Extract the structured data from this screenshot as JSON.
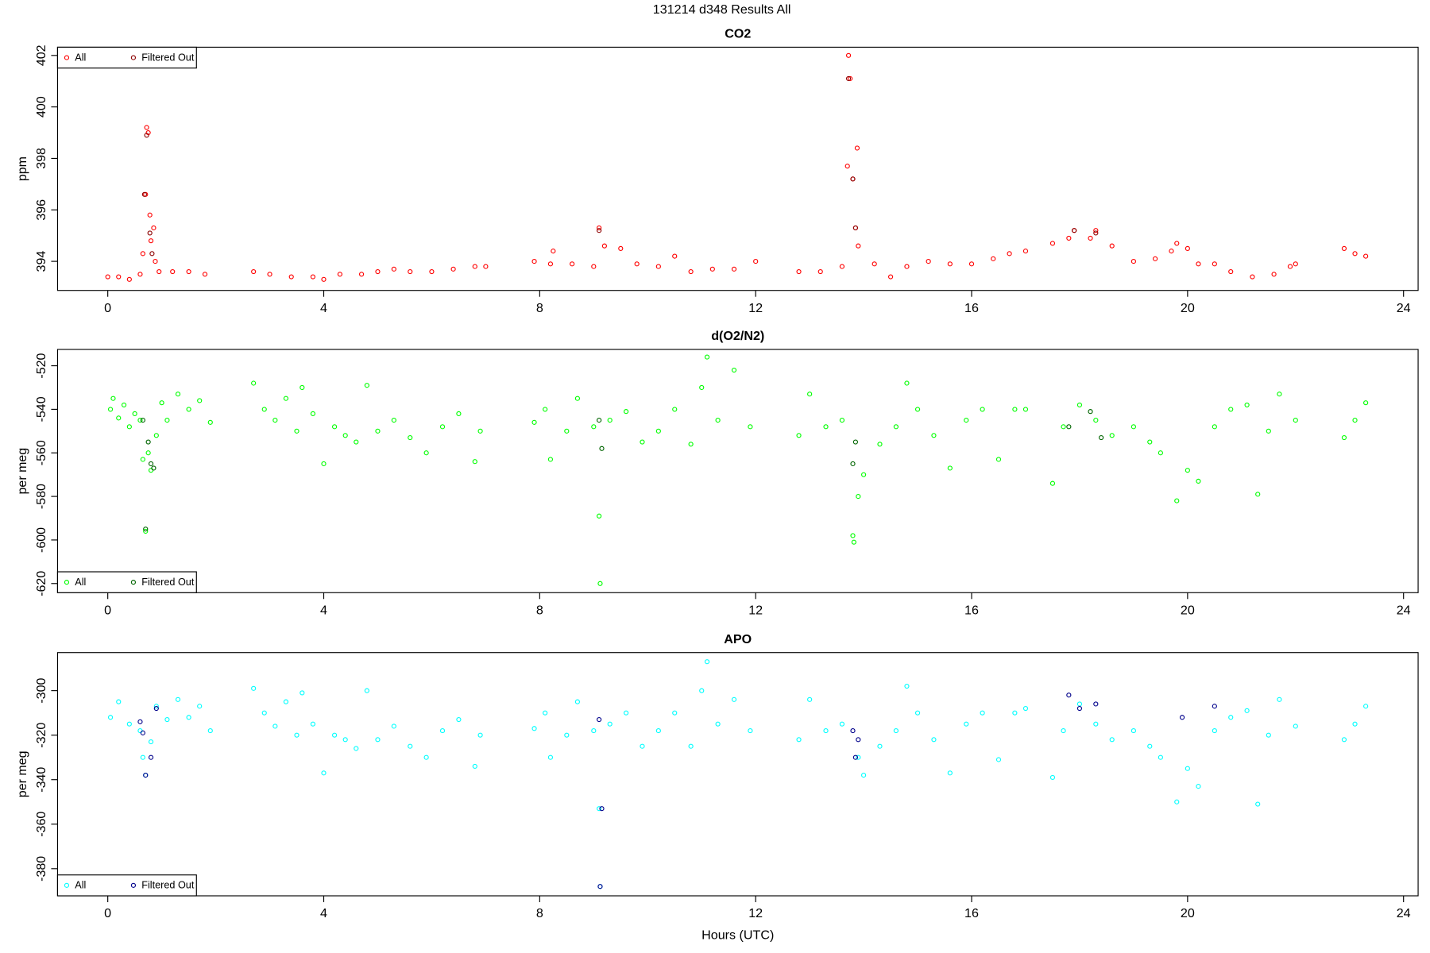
{
  "title": "131214   d348   Results All",
  "chart_data": [
    {
      "type": "scatter",
      "title": "CO2",
      "ylabel": "ppm",
      "legend": "top-left",
      "xlim": [
        -0.93,
        24.27
      ],
      "xticks": [
        0,
        4,
        8,
        12,
        16,
        20,
        24
      ],
      "ylim": [
        392.87,
        402.32
      ],
      "yticks": [
        394,
        396,
        398,
        400,
        402
      ],
      "series": [
        {
          "name": "All",
          "color": "#ff0000",
          "x": [
            0.0,
            0.2,
            0.4,
            0.6,
            0.65,
            0.7,
            0.72,
            0.75,
            0.78,
            0.8,
            0.85,
            0.88,
            0.95,
            1.2,
            1.5,
            1.8,
            2.7,
            3.0,
            3.4,
            3.8,
            4.0,
            4.3,
            4.7,
            5.0,
            5.3,
            5.6,
            6.0,
            6.4,
            6.8,
            7.0,
            7.9,
            8.2,
            8.25,
            8.6,
            9.0,
            9.1,
            9.2,
            9.5,
            9.8,
            10.2,
            10.5,
            10.8,
            11.2,
            11.6,
            12.0,
            12.8,
            13.2,
            13.6,
            13.7,
            13.72,
            13.75,
            13.8,
            13.85,
            13.88,
            13.9,
            14.2,
            14.5,
            14.8,
            15.2,
            15.6,
            16.0,
            16.4,
            16.7,
            17.0,
            17.5,
            17.8,
            17.9,
            18.2,
            18.3,
            18.6,
            19.0,
            19.4,
            19.7,
            19.8,
            20.0,
            20.2,
            20.5,
            20.8,
            21.2,
            21.6,
            21.9,
            22.0,
            22.9,
            23.1,
            23.3
          ],
          "values": [
            393.4,
            393.4,
            393.3,
            393.5,
            394.3,
            396.6,
            399.2,
            399.0,
            395.8,
            394.8,
            395.3,
            394.0,
            393.6,
            393.6,
            393.6,
            393.5,
            393.6,
            393.5,
            393.4,
            393.4,
            393.3,
            393.5,
            393.5,
            393.6,
            393.7,
            393.6,
            393.6,
            393.7,
            393.8,
            393.8,
            394.0,
            393.9,
            394.4,
            393.9,
            393.8,
            395.3,
            394.6,
            394.5,
            393.9,
            393.8,
            394.2,
            393.6,
            393.7,
            393.7,
            394.0,
            393.6,
            393.6,
            393.8,
            397.7,
            402.0,
            401.1,
            397.2,
            395.3,
            398.4,
            394.6,
            393.9,
            393.4,
            393.8,
            394.0,
            393.9,
            393.9,
            394.1,
            394.3,
            394.4,
            394.7,
            394.9,
            395.2,
            394.9,
            395.2,
            394.6,
            394.0,
            394.1,
            394.4,
            394.7,
            394.5,
            393.9,
            393.9,
            393.6,
            393.4,
            393.5,
            393.8,
            393.9,
            394.5,
            394.3,
            394.2
          ]
        },
        {
          "name": "Filtered Out",
          "color": "#8b0000",
          "x": [
            0.68,
            0.72,
            0.78,
            0.82,
            9.1,
            13.72,
            13.8,
            13.85,
            17.9,
            18.3
          ],
          "values": [
            396.6,
            398.9,
            395.1,
            394.3,
            395.2,
            401.1,
            397.2,
            395.3,
            395.2,
            395.1
          ]
        }
      ]
    },
    {
      "type": "scatter",
      "title": "d(O2/N2)",
      "ylabel": "per meg",
      "legend": "bottom-left",
      "xlim": [
        -0.93,
        24.27
      ],
      "xticks": [
        0,
        4,
        8,
        12,
        16,
        20,
        24
      ],
      "ylim": [
        -624.2,
        -512.5
      ],
      "yticks": [
        -620,
        -600,
        -580,
        -560,
        -540,
        -520
      ],
      "series": [
        {
          "name": "All",
          "color": "#00ff00",
          "x": [
            0.05,
            0.1,
            0.2,
            0.3,
            0.4,
            0.5,
            0.6,
            0.65,
            0.7,
            0.75,
            0.8,
            0.9,
            1.0,
            1.1,
            1.3,
            1.5,
            1.7,
            1.9,
            2.7,
            2.9,
            3.1,
            3.3,
            3.5,
            3.6,
            3.8,
            4.0,
            4.2,
            4.4,
            4.6,
            4.8,
            5.0,
            5.3,
            5.6,
            5.9,
            6.2,
            6.5,
            6.8,
            6.9,
            7.9,
            8.1,
            8.2,
            8.5,
            8.7,
            9.0,
            9.1,
            9.12,
            9.3,
            9.6,
            9.9,
            10.2,
            10.5,
            10.8,
            11.0,
            11.1,
            11.3,
            11.6,
            11.9,
            12.8,
            13.0,
            13.3,
            13.6,
            13.8,
            13.82,
            13.9,
            14.0,
            14.3,
            14.6,
            14.8,
            15.0,
            15.3,
            15.6,
            15.9,
            16.2,
            16.5,
            16.8,
            17.0,
            17.5,
            17.7,
            18.0,
            18.3,
            18.6,
            19.0,
            19.3,
            19.5,
            19.8,
            20.0,
            20.2,
            20.5,
            20.8,
            21.1,
            21.3,
            21.5,
            21.7,
            22.0,
            22.9,
            23.1,
            23.3
          ],
          "values": [
            -540,
            -535,
            -544,
            -538,
            -548,
            -542,
            -545,
            -563,
            -596,
            -560,
            -568,
            -552,
            -537,
            -545,
            -533,
            -540,
            -536,
            -546,
            -528,
            -540,
            -545,
            -535,
            -550,
            -530,
            -542,
            -565,
            -548,
            -552,
            -555,
            -529,
            -550,
            -545,
            -553,
            -560,
            -548,
            -542,
            -564,
            -550,
            -546,
            -540,
            -563,
            -550,
            -535,
            -548,
            -589,
            -620,
            -545,
            -541,
            -555,
            -550,
            -540,
            -556,
            -530,
            -516,
            -545,
            -522,
            -548,
            -552,
            -533,
            -548,
            -545,
            -598,
            -601,
            -580,
            -570,
            -556,
            -548,
            -528,
            -540,
            -552,
            -567,
            -545,
            -540,
            -563,
            -540,
            -540,
            -574,
            -548,
            -538,
            -545,
            -552,
            -548,
            -555,
            -560,
            -582,
            -568,
            -573,
            -548,
            -540,
            -538,
            -579,
            -550,
            -533,
            -545,
            -553,
            -545,
            -537
          ]
        },
        {
          "name": "Filtered Out",
          "color": "#006400",
          "x": [
            0.65,
            0.7,
            0.75,
            0.8,
            0.85,
            9.1,
            9.15,
            13.8,
            13.85,
            17.8,
            18.2,
            18.4
          ],
          "values": [
            -545,
            -595,
            -555,
            -565,
            -567,
            -545,
            -558,
            -565,
            -555,
            -548,
            -541,
            -553
          ]
        }
      ]
    },
    {
      "type": "scatter",
      "title": "APO",
      "ylabel": "per meg",
      "xlabel": "Hours (UTC)",
      "legend": "bottom-left",
      "xlim": [
        -0.93,
        24.27
      ],
      "xticks": [
        0,
        4,
        8,
        12,
        16,
        20,
        24
      ],
      "ylim": [
        -392.2,
        -282.9
      ],
      "yticks": [
        -380,
        -360,
        -340,
        -320,
        -300
      ],
      "series": [
        {
          "name": "All",
          "color": "#00ffff",
          "x": [
            0.05,
            0.2,
            0.4,
            0.6,
            0.65,
            0.7,
            0.8,
            0.9,
            1.1,
            1.3,
            1.5,
            1.7,
            1.9,
            2.7,
            2.9,
            3.1,
            3.3,
            3.5,
            3.6,
            3.8,
            4.0,
            4.2,
            4.4,
            4.6,
            4.8,
            5.0,
            5.3,
            5.6,
            5.9,
            6.2,
            6.5,
            6.8,
            6.9,
            7.9,
            8.1,
            8.2,
            8.5,
            8.7,
            9.0,
            9.1,
            9.12,
            9.3,
            9.6,
            9.9,
            10.2,
            10.5,
            10.8,
            11.0,
            11.1,
            11.3,
            11.6,
            11.9,
            12.8,
            13.0,
            13.3,
            13.6,
            13.9,
            14.0,
            14.3,
            14.6,
            14.8,
            15.0,
            15.3,
            15.6,
            15.9,
            16.2,
            16.5,
            16.8,
            17.0,
            17.5,
            17.7,
            18.0,
            18.3,
            18.6,
            19.0,
            19.3,
            19.5,
            19.8,
            20.0,
            20.2,
            20.5,
            20.8,
            21.1,
            21.3,
            21.5,
            21.7,
            22.0,
            22.9,
            23.1,
            23.3
          ],
          "values": [
            -312,
            -305,
            -315,
            -318,
            -330,
            -338,
            -323,
            -307,
            -313,
            -304,
            -312,
            -307,
            -318,
            -299,
            -310,
            -316,
            -305,
            -320,
            -301,
            -315,
            -337,
            -320,
            -322,
            -326,
            -300,
            -322,
            -316,
            -325,
            -330,
            -318,
            -313,
            -334,
            -320,
            -317,
            -310,
            -330,
            -320,
            -305,
            -318,
            -353,
            -388,
            -315,
            -310,
            -325,
            -318,
            -310,
            -325,
            -300,
            -287,
            -315,
            -304,
            -318,
            -322,
            -304,
            -318,
            -315,
            -330,
            -338,
            -325,
            -318,
            -298,
            -310,
            -322,
            -337,
            -315,
            -310,
            -331,
            -310,
            -308,
            -339,
            -318,
            -306,
            -315,
            -322,
            -318,
            -325,
            -330,
            -350,
            -335,
            -343,
            -318,
            -312,
            -309,
            -351,
            -320,
            -304,
            -316,
            -322,
            -315,
            -307
          ]
        },
        {
          "name": "Filtered Out",
          "color": "#00008b",
          "x": [
            0.6,
            0.65,
            0.7,
            0.8,
            0.9,
            9.1,
            9.15,
            9.12,
            13.8,
            13.85,
            13.9,
            17.8,
            18.0,
            18.3,
            20.5,
            19.9
          ],
          "values": [
            -314,
            -319,
            -338,
            -330,
            -308,
            -313,
            -353,
            -388,
            -318,
            -330,
            -322,
            -302,
            -308,
            -306,
            -307,
            -312
          ]
        }
      ]
    }
  ]
}
